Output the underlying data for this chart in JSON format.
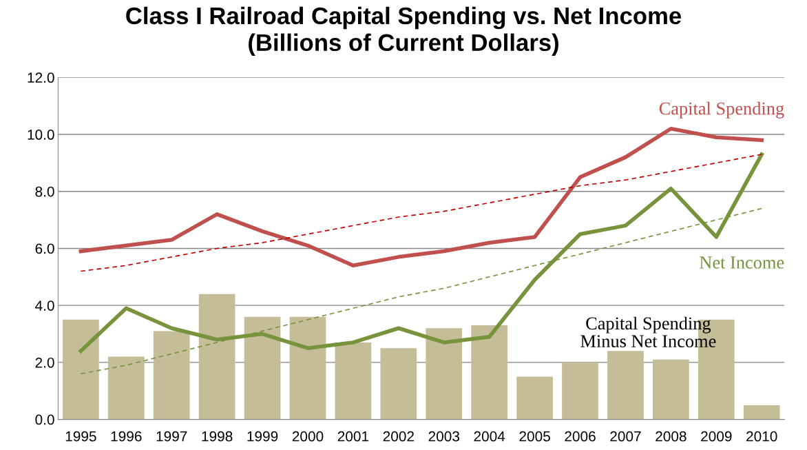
{
  "chart_data": {
    "type": "bar",
    "title": "Class I Railroad Capital Spending vs. Net Income\n(Billions of Current Dollars)",
    "categories": [
      "1995",
      "1996",
      "1997",
      "1998",
      "1999",
      "2000",
      "2001",
      "2002",
      "2003",
      "2004",
      "2005",
      "2006",
      "2007",
      "2008",
      "2009",
      "2010"
    ],
    "series": [
      {
        "name": "Capital Spending Minus Net Income",
        "color": "#c4bd97",
        "values": [
          3.5,
          2.2,
          3.1,
          4.4,
          3.6,
          3.6,
          2.7,
          2.5,
          3.2,
          3.3,
          1.5,
          2.0,
          2.4,
          2.1,
          3.5,
          0.5
        ]
      },
      {
        "name": "Capital Spending",
        "type": "line",
        "color": "#c0504d",
        "values": [
          5.9,
          6.1,
          6.3,
          7.2,
          6.6,
          6.1,
          5.4,
          5.7,
          5.9,
          6.2,
          6.4,
          8.5,
          9.2,
          10.2,
          9.9,
          9.8
        ]
      },
      {
        "name": "Net Income",
        "type": "line",
        "color": "#77933c",
        "values": [
          2.4,
          3.9,
          3.2,
          2.8,
          3.0,
          2.5,
          2.7,
          3.2,
          2.7,
          2.9,
          4.9,
          6.5,
          6.8,
          8.1,
          6.4,
          9.3
        ]
      },
      {
        "type": "line",
        "line_style": "dashed",
        "color": "#c00000",
        "values": [
          5.2,
          5.4,
          5.7,
          6.0,
          6.2,
          6.5,
          6.8,
          7.1,
          7.3,
          7.6,
          7.9,
          8.2,
          8.4,
          8.7,
          9.0,
          9.3
        ]
      },
      {
        "type": "line",
        "line_style": "dashed",
        "color": "#77933c",
        "values": [
          1.6,
          1.9,
          2.3,
          2.7,
          3.1,
          3.5,
          3.9,
          4.3,
          4.6,
          5.0,
          5.4,
          5.8,
          6.2,
          6.6,
          7.0,
          7.4
        ]
      }
    ],
    "ylim": [
      0,
      12
    ],
    "yticks": [
      {
        "value": 0,
        "label": "0.0"
      },
      {
        "value": 2,
        "label": "2.0"
      },
      {
        "value": 4,
        "label": "4.0"
      },
      {
        "value": 6,
        "label": "6.0"
      },
      {
        "value": 8,
        "label": "8.0"
      },
      {
        "value": 10,
        "label": "10.0"
      },
      {
        "value": 12,
        "label": "12.0"
      }
    ],
    "grid": "y",
    "legend": false,
    "marker": "none",
    "line_style": "solid"
  }
}
